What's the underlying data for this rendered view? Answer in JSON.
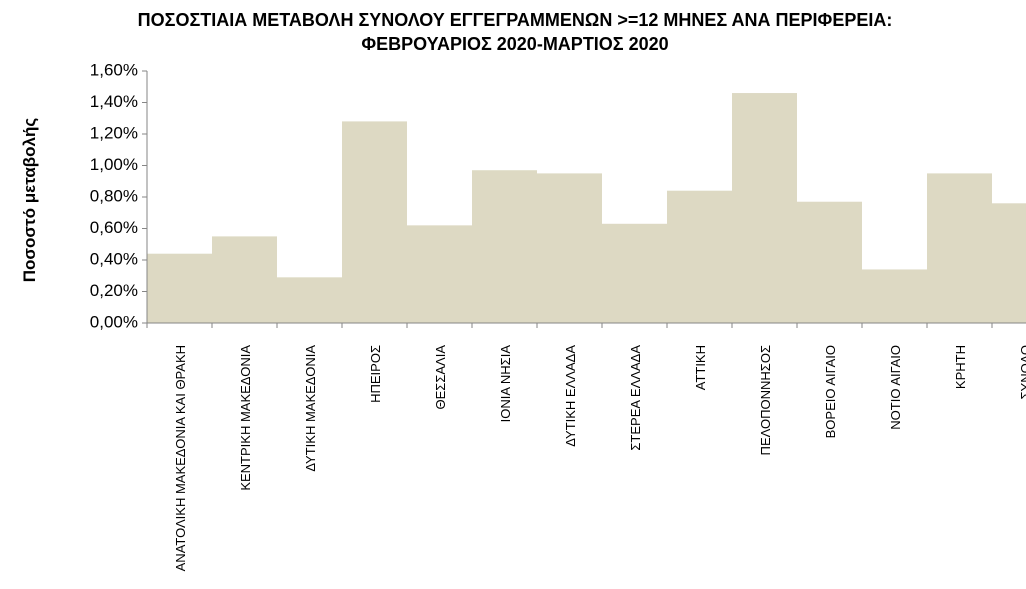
{
  "chart_data": {
    "type": "bar",
    "title": "ΠΟΣΟΣΤΙΑΙΑ ΜΕΤΑΒΟΛΗ  ΣΥΝΟΛΟΥ ΕΓΓΕΓΡΑΜΜΕΝΩΝ >=12 ΜΗΝΕΣ ΑΝΑ ΠΕΡΙΦΕΡΕΙΑ: ΦΕΒΡΟΥΑΡΙΟΣ 2020-ΜΑΡΤΙΟΣ 2020",
    "y_label": "Ποσοστό μεταβολής",
    "categories": [
      "ΑΝΑΤΟΛΙΚΗ ΜΑΚΕΔΟΝΙΑ ΚΑΙ ΘΡΑΚΗ",
      "ΚΕΝΤΡΙΚΗ ΜΑΚΕΔΟΝΙΑ",
      "ΔΥΤΙΚΗ ΜΑΚΕΔΟΝΙΑ",
      "ΗΠΕΙΡΟΣ",
      "ΘΕΣΣΑΛΙΑ",
      "ΙΟΝΙΑ ΝΗΣΙΑ",
      "ΔΥΤΙΚΗ ΕΛΛΑΔΑ",
      "ΣΤΕΡΕΑ ΕΛΛΑΔΑ",
      "ΑΤΤΙΚΗ",
      "ΠΕΛΟΠΟΝΝΗΣΟΣ",
      "ΒΟΡΕΙΟ ΑΙΓΑΙΟ",
      "ΝΟΤΙΟ ΑΙΓΑΙΟ",
      "ΚΡΗΤΗ",
      "ΣΥΝΟΛΟ"
    ],
    "values": [
      0.44,
      0.55,
      0.29,
      1.28,
      0.62,
      0.97,
      0.95,
      0.63,
      0.84,
      1.46,
      0.77,
      0.34,
      0.95,
      0.76
    ],
    "color": "#ddd9c3",
    "ylim": [
      0,
      1.6
    ],
    "yticks": [
      {
        "value": 0,
        "label": "0,00%"
      },
      {
        "value": 0.2,
        "label": "0,20%"
      },
      {
        "value": 0.4,
        "label": "0,40%"
      },
      {
        "value": 0.6,
        "label": "0,60%"
      },
      {
        "value": 0.8,
        "label": "0,80%"
      },
      {
        "value": 1.0,
        "label": "1,00%"
      },
      {
        "value": 1.2,
        "label": "1,20%"
      },
      {
        "value": 1.4,
        "label": "1,40%"
      },
      {
        "value": 1.6,
        "label": "1,60%"
      }
    ]
  }
}
